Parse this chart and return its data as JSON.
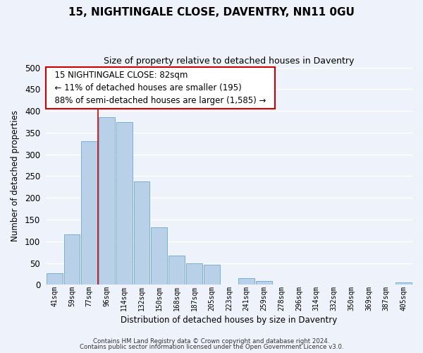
{
  "title": "15, NIGHTINGALE CLOSE, DAVENTRY, NN11 0GU",
  "subtitle": "Size of property relative to detached houses in Daventry",
  "xlabel": "Distribution of detached houses by size in Daventry",
  "ylabel": "Number of detached properties",
  "bar_labels": [
    "41sqm",
    "59sqm",
    "77sqm",
    "96sqm",
    "114sqm",
    "132sqm",
    "150sqm",
    "168sqm",
    "187sqm",
    "205sqm",
    "223sqm",
    "241sqm",
    "259sqm",
    "278sqm",
    "296sqm",
    "314sqm",
    "332sqm",
    "350sqm",
    "369sqm",
    "387sqm",
    "405sqm"
  ],
  "bar_values": [
    27,
    116,
    330,
    385,
    375,
    237,
    133,
    68,
    50,
    46,
    0,
    15,
    9,
    0,
    0,
    0,
    0,
    0,
    0,
    0,
    5
  ],
  "bar_color": "#b8d0e8",
  "bar_edge_color": "#7aafd4",
  "vline_x_idx": 2.5,
  "vline_color": "#cc0000",
  "ylim": [
    0,
    500
  ],
  "yticks": [
    0,
    50,
    100,
    150,
    200,
    250,
    300,
    350,
    400,
    450,
    500
  ],
  "annotation_title": "15 NIGHTINGALE CLOSE: 82sqm",
  "annotation_line1": "← 11% of detached houses are smaller (195)",
  "annotation_line2": "88% of semi-detached houses are larger (1,585) →",
  "annotation_box_color": "#ffffff",
  "annotation_box_edgecolor": "#cc0000",
  "footer1": "Contains HM Land Registry data © Crown copyright and database right 2024.",
  "footer2": "Contains public sector information licensed under the Open Government Licence v3.0.",
  "bg_color": "#eef2fa",
  "grid_color": "#d0d8ec"
}
